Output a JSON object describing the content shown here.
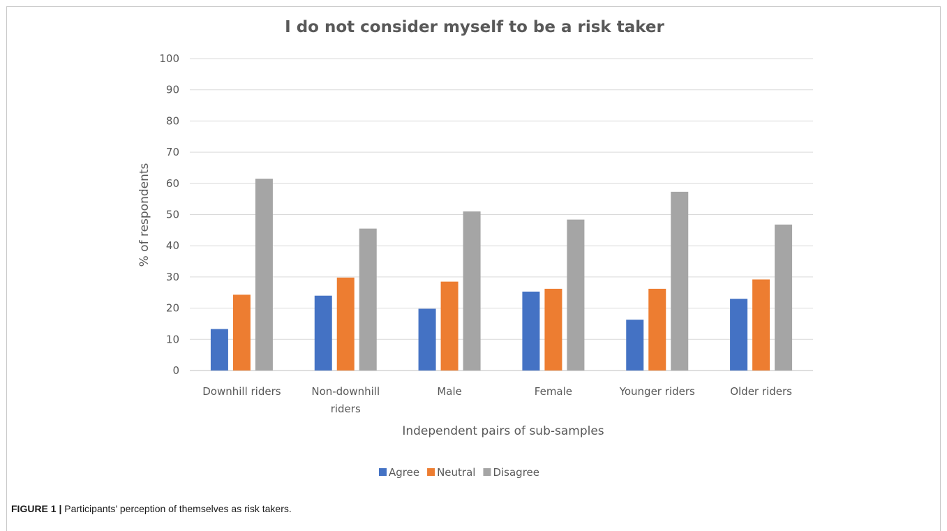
{
  "chart_data": {
    "type": "bar",
    "title": "I do not consider myself to be a risk taker",
    "xlabel": "Independent pairs of sub-samples",
    "ylabel": "% of respondents",
    "ylim": [
      0,
      100
    ],
    "yticks": [
      "0",
      "10",
      "20",
      "30",
      "40",
      "50",
      "60",
      "70",
      "80",
      "90",
      "100"
    ],
    "categories": [
      [
        "Downhill riders"
      ],
      [
        "Non-downhill",
        "riders"
      ],
      [
        "Male"
      ],
      [
        "Female"
      ],
      [
        "Younger riders"
      ],
      [
        "Older riders"
      ]
    ],
    "series": [
      {
        "name": "Agree",
        "color": "#4472c4",
        "values": [
          13.3,
          24.0,
          19.8,
          25.3,
          16.3,
          23.0
        ]
      },
      {
        "name": "Neutral",
        "color": "#ed7d31",
        "values": [
          24.3,
          29.8,
          28.5,
          26.2,
          26.2,
          29.2
        ]
      },
      {
        "name": "Disagree",
        "color": "#a5a5a5",
        "values": [
          61.5,
          45.5,
          51.0,
          48.4,
          57.3,
          46.8
        ]
      }
    ],
    "grid": true,
    "legend": "bottom"
  },
  "caption": {
    "label": "FIGURE 1 |",
    "text": " Participants’ perception of themselves as risk takers."
  }
}
